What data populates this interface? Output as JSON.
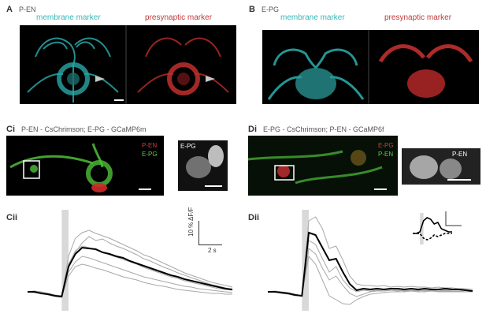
{
  "figure": {
    "panel_A": {
      "letter": "A",
      "title": "P-EN",
      "left_label": "membrane marker",
      "right_label": "presynaptic marker"
    },
    "panel_B": {
      "letter": "B",
      "title": "E-PG",
      "left_label": "membrane marker",
      "right_label": "presynaptic marker"
    },
    "panel_Ci": {
      "letter": "Ci",
      "title": "P-EN - CsChrimson; E-PG - GCaMP6m",
      "overlay_top": "P-EN",
      "overlay_bottom": "E-PG",
      "inset_label": "E-PG"
    },
    "panel_Di": {
      "letter": "Di",
      "title": "E-PG - CsChrimson; P-EN - GCaMP6f",
      "overlay_top": "E-PG",
      "overlay_bottom": "P-EN",
      "inset_label": "P-EN"
    },
    "panel_Cii": {
      "letter": "Cii",
      "scale_y": "10 % ΔF/F",
      "scale_x": "2 s"
    },
    "panel_Dii": {
      "letter": "Dii"
    }
  },
  "colors": {
    "teal": "#3ab6b6",
    "red": "#c13a3a",
    "green": "#4fbf3a",
    "stim": "#d9d9d9",
    "trace_gray": "#a8a8a8",
    "trace_mean": "#000000"
  },
  "chart_data": [
    {
      "type": "line",
      "panel": "Cii",
      "x": [
        0,
        1,
        2,
        3,
        4,
        5,
        6,
        7,
        8,
        9,
        10,
        11,
        12,
        13,
        14,
        15,
        16,
        17,
        18,
        19,
        20,
        21,
        22,
        23,
        24,
        25,
        26,
        27,
        28,
        29,
        30
      ],
      "stimulus_window": [
        5,
        6
      ],
      "series": [
        {
          "role": "mean",
          "values": [
            0,
            0,
            -0.2,
            -0.3,
            -0.5,
            -0.6,
            3.2,
            4.8,
            5.6,
            5.5,
            5.4,
            5.0,
            4.8,
            4.5,
            4.3,
            3.9,
            3.6,
            3.3,
            3.0,
            2.7,
            2.4,
            2.1,
            1.9,
            1.6,
            1.4,
            1.2,
            1.0,
            0.8,
            0.6,
            0.4,
            0.3
          ]
        },
        {
          "role": "single",
          "values": [
            0,
            0.1,
            -0.1,
            -0.3,
            -0.5,
            -0.6,
            4.5,
            6.8,
            7.5,
            7.8,
            7.4,
            7.1,
            6.8,
            6.4,
            6.0,
            5.6,
            5.2,
            4.7,
            4.4,
            4.0,
            3.6,
            3.2,
            2.8,
            2.4,
            2.1,
            1.8,
            1.5,
            1.2,
            1.0,
            0.8,
            0.6
          ]
        },
        {
          "role": "single",
          "values": [
            0,
            -0.1,
            -0.2,
            -0.4,
            -0.6,
            -0.7,
            3.0,
            5.0,
            6.2,
            7.0,
            6.5,
            6.7,
            6.2,
            5.8,
            5.5,
            5.1,
            4.7,
            4.2,
            3.9,
            3.5,
            3.1,
            2.8,
            2.4,
            2.1,
            1.8,
            1.5,
            1.2,
            0.9,
            0.7,
            0.5,
            0.3
          ]
        },
        {
          "role": "single",
          "values": [
            0,
            0.1,
            0,
            -0.2,
            -0.4,
            -0.5,
            2.5,
            3.8,
            4.5,
            4.3,
            4.0,
            3.7,
            3.4,
            3.1,
            2.8,
            2.5,
            2.2,
            1.9,
            1.7,
            1.5,
            1.3,
            1.1,
            0.9,
            0.7,
            0.6,
            0.4,
            0.3,
            0.2,
            0.1,
            0,
            -0.1
          ]
        },
        {
          "role": "single",
          "values": [
            0,
            0,
            -0.2,
            -0.3,
            -0.4,
            -0.6,
            2.0,
            3.2,
            3.5,
            3.3,
            3.0,
            2.8,
            2.5,
            2.2,
            1.9,
            1.7,
            1.5,
            1.2,
            1.0,
            0.8,
            0.7,
            0.5,
            0.3,
            0.2,
            0.1,
            0,
            -0.1,
            -0.2,
            -0.2,
            -0.3,
            -0.3
          ]
        },
        {
          "role": "single",
          "values": [
            0,
            0.1,
            -0.1,
            -0.2,
            -0.5,
            -0.6,
            3.5,
            5.2,
            5.8,
            5.6,
            5.3,
            5.0,
            4.7,
            4.4,
            4.1,
            3.8,
            3.5,
            3.1,
            2.8,
            2.5,
            2.2,
            1.9,
            1.7,
            1.4,
            1.2,
            1.0,
            0.8,
            0.6,
            0.4,
            0.3,
            0.2
          ]
        }
      ],
      "ylim": [
        -2,
        10
      ],
      "xlabel": "",
      "ylabel": ""
    },
    {
      "type": "line",
      "panel": "Dii",
      "x": [
        0,
        1,
        2,
        3,
        4,
        5,
        6,
        7,
        8,
        9,
        10,
        11,
        12,
        13,
        14,
        15,
        16,
        17,
        18,
        19,
        20,
        21,
        22,
        23,
        24,
        25,
        26,
        27,
        28,
        29,
        30
      ],
      "stimulus_window": [
        5,
        6
      ],
      "series": [
        {
          "role": "mean",
          "values": [
            0,
            0,
            -0.1,
            -0.2,
            -0.4,
            -0.5,
            7.5,
            7.2,
            5.6,
            4.0,
            4.2,
            2.5,
            1.0,
            0.2,
            0.4,
            0.3,
            0.4,
            0.3,
            0.4,
            0.4,
            0.3,
            0.4,
            0.3,
            0.4,
            0.3,
            0.3,
            0.4,
            0.3,
            0.3,
            0.2,
            0.1
          ]
        },
        {
          "role": "single",
          "values": [
            0,
            0.1,
            -0.1,
            -0.2,
            -0.4,
            -0.6,
            9.0,
            9.5,
            8.0,
            5.5,
            5.8,
            4.0,
            2.0,
            1.0,
            0.8,
            0.8,
            0.7,
            0.8,
            0.6,
            0.7,
            0.6,
            0.7,
            0.6,
            0.6,
            0.5,
            0.6,
            0.5,
            0.5,
            0.4,
            0.4,
            0.3
          ]
        },
        {
          "role": "single",
          "values": [
            0,
            0,
            -0.2,
            -0.3,
            -0.5,
            -0.5,
            6.5,
            6.0,
            4.2,
            2.5,
            3.2,
            1.5,
            0.5,
            0,
            0.2,
            0.1,
            0.2,
            0.1,
            0.2,
            0.2,
            0.1,
            0.2,
            0.1,
            0.2,
            0.1,
            0.1,
            0.2,
            0.1,
            0.1,
            0,
            0
          ]
        },
        {
          "role": "single",
          "values": [
            0,
            0.1,
            0,
            -0.1,
            -0.3,
            -0.5,
            4.5,
            3.5,
            1.5,
            -0.5,
            -1.0,
            -1.5,
            -1.6,
            -1.0,
            -0.6,
            -0.3,
            -0.2,
            -0.1,
            0,
            0,
            0,
            0.1,
            0,
            0,
            0.1,
            0,
            0,
            0,
            0,
            0,
            0
          ]
        },
        {
          "role": "single",
          "values": [
            0,
            0,
            -0.1,
            -0.2,
            -0.4,
            -0.5,
            5.5,
            4.8,
            3.0,
            1.5,
            2.0,
            0.8,
            -0.2,
            -0.6,
            -0.3,
            0,
            0.1,
            0.1,
            0.2,
            0.1,
            0.2,
            0.1,
            0.2,
            0.1,
            0.2,
            0.1,
            0.1,
            0.1,
            0,
            0,
            0
          ]
        }
      ],
      "inset": {
        "series": [
          {
            "role": "solid",
            "values": [
              0,
              0,
              0.5,
              4,
              5,
              4.5,
              3,
              3.5,
              1.5,
              1,
              0.5,
              0.5
            ]
          },
          {
            "role": "dashed",
            "values": [
              0,
              0,
              0,
              -1.5,
              -2,
              -1.5,
              -0.5,
              -1,
              -0.5,
              0,
              0,
              0
            ]
          }
        ],
        "stimulus_window": [
          2,
          3
        ]
      },
      "ylim": [
        -2,
        10
      ],
      "xlabel": "",
      "ylabel": ""
    }
  ]
}
